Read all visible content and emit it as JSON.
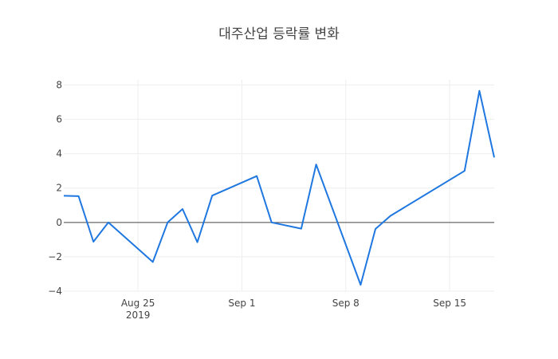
{
  "chart_data": {
    "type": "line",
    "title": "대주산업 등락률 변화",
    "xlabel": "",
    "ylabel": "",
    "x_range": [
      "2019-08-20",
      "2019-09-18"
    ],
    "ylim": [
      -4.0,
      8.3
    ],
    "grid": true,
    "line_color": "#1f77e0",
    "y_ticks": [
      {
        "value": 8,
        "label": "8"
      },
      {
        "value": 6,
        "label": "6"
      },
      {
        "value": 4,
        "label": "4"
      },
      {
        "value": 2,
        "label": "2"
      },
      {
        "value": 0,
        "label": "0"
      },
      {
        "value": -2,
        "label": "−2"
      },
      {
        "value": -4,
        "label": "−4"
      }
    ],
    "x_ticks": [
      {
        "date": "2019-08-25",
        "label": "Aug 25",
        "sublabel": "2019"
      },
      {
        "date": "2019-09-01",
        "label": "Sep 1",
        "sublabel": ""
      },
      {
        "date": "2019-09-08",
        "label": "Sep 8",
        "sublabel": ""
      },
      {
        "date": "2019-09-15",
        "label": "Sep 15",
        "sublabel": ""
      }
    ],
    "series": [
      {
        "points": [
          {
            "x": "2019-08-20",
            "y": 1.55
          },
          {
            "x": "2019-08-21",
            "y": 1.53
          },
          {
            "x": "2019-08-22",
            "y": -1.12
          },
          {
            "x": "2019-08-23",
            "y": 0.0
          },
          {
            "x": "2019-08-26",
            "y": -2.3
          },
          {
            "x": "2019-08-27",
            "y": 0.0
          },
          {
            "x": "2019-08-28",
            "y": 0.78
          },
          {
            "x": "2019-08-29",
            "y": -1.15
          },
          {
            "x": "2019-08-30",
            "y": 1.56
          },
          {
            "x": "2019-09-02",
            "y": 2.7
          },
          {
            "x": "2019-09-03",
            "y": 0.0
          },
          {
            "x": "2019-09-05",
            "y": -0.36
          },
          {
            "x": "2019-09-06",
            "y": 3.37
          },
          {
            "x": "2019-09-09",
            "y": -3.63
          },
          {
            "x": "2019-09-10",
            "y": -0.38
          },
          {
            "x": "2019-09-11",
            "y": 0.38
          },
          {
            "x": "2019-09-16",
            "y": 3.0
          },
          {
            "x": "2019-09-17",
            "y": 7.66
          },
          {
            "x": "2019-09-18",
            "y": 3.78
          }
        ]
      }
    ]
  }
}
